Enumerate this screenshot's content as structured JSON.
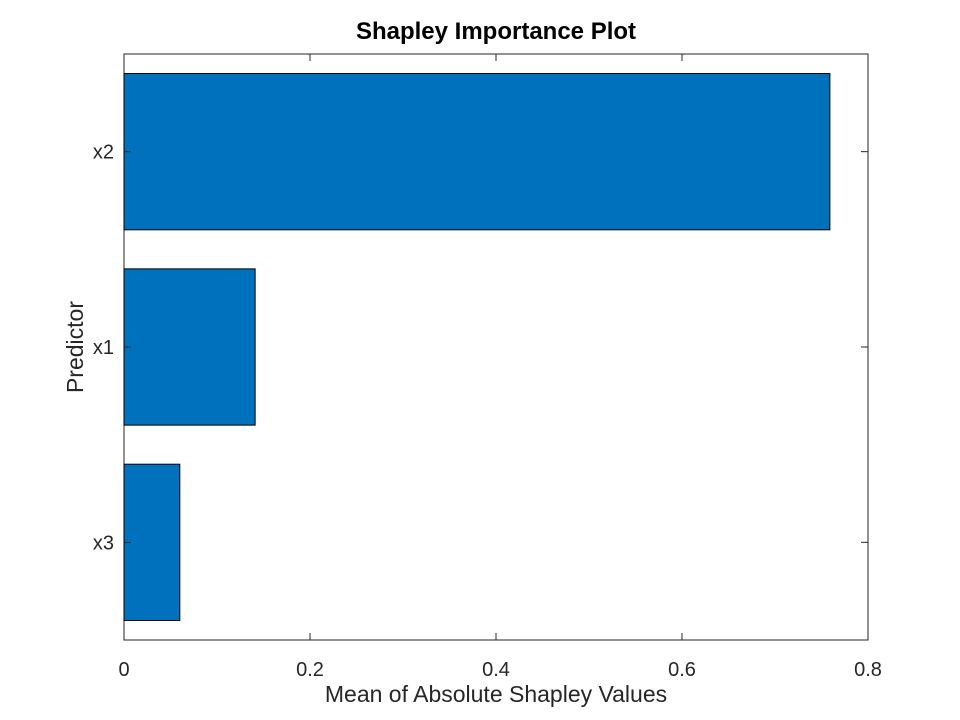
{
  "chart_data": {
    "type": "bar",
    "orientation": "horizontal",
    "title": "Shapley Importance Plot",
    "xlabel": "Mean of Absolute Shapley Values",
    "ylabel": "Predictor",
    "categories": [
      "x2",
      "x1",
      "x3"
    ],
    "values": [
      0.759,
      0.141,
      0.06
    ],
    "xlim": [
      0,
      0.8
    ],
    "xticks": [
      "0",
      "0.2",
      "0.4",
      "0.6",
      "0.8"
    ],
    "grid": false,
    "bar_color": "#0072BD",
    "edge_color": "#000000"
  }
}
